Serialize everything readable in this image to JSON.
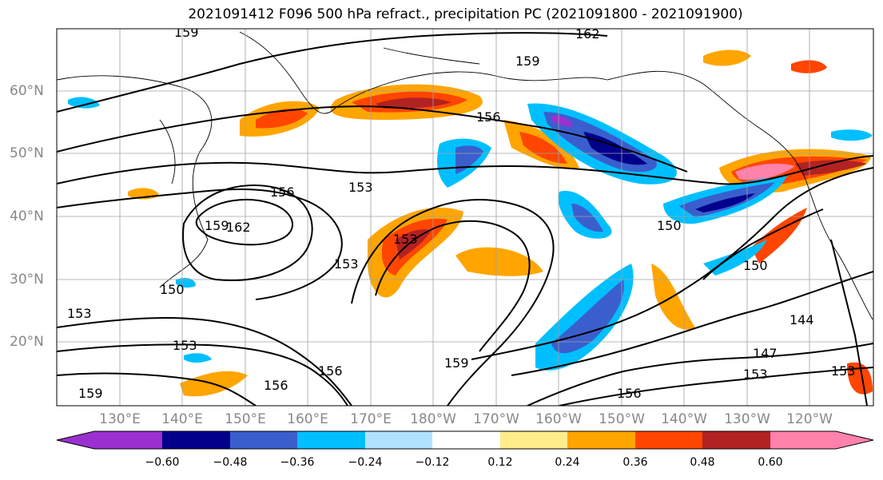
{
  "title": "2021091412 F096 500 hPa refract., precipitation PC (2021091800 - 2021091900)",
  "lat_labels": [
    "60°N",
    "50°N",
    "40°N",
    "30°N",
    "20°N"
  ],
  "lon_labels": [
    "130°E",
    "140°E",
    "150°E",
    "160°E",
    "170°E",
    "180°W",
    "170°W",
    "160°W",
    "150°W",
    "140°W",
    "130°W",
    "120°W"
  ],
  "contour_labels": [
    "159",
    "162",
    "159",
    "156",
    "153",
    "156",
    "159",
    "162",
    "153",
    "153",
    "150",
    "150",
    "153",
    "150",
    "153",
    "156",
    "159",
    "156",
    "144",
    "147",
    "153",
    "153",
    "159",
    "156"
  ],
  "colorbar": {
    "ticks": [
      "−0.60",
      "−0.48",
      "−0.36",
      "−0.24",
      "−0.12",
      "0.12",
      "0.24",
      "0.36",
      "0.48",
      "0.60"
    ],
    "colors": [
      "#9b30d0",
      "#00008b",
      "#3a5fcd",
      "#00bfff",
      "#b0e2ff",
      "#ffffff",
      "#ffec8b",
      "#ffa500",
      "#ff4500",
      "#b22222",
      "#ff82ab"
    ]
  },
  "palette": {
    "pos_light": "#ffec8b",
    "pos_mid": "#ffa500",
    "pos_strong": "#ff4500",
    "pos_dark": "#b22222",
    "pos_max": "#ff82ab",
    "neg_light": "#b0e2ff",
    "neg_mid": "#00bfff",
    "neg_strong": "#3a5fcd",
    "neg_dark": "#00008b",
    "neg_min": "#9b30d0"
  }
}
